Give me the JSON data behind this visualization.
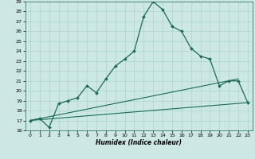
{
  "xlabel": "Humidex (Indice chaleur)",
  "bg_color": "#cde8e4",
  "grid_color": "#a8d4ce",
  "line_color": "#1a6b5a",
  "xlim": [
    -0.5,
    23.5
  ],
  "ylim": [
    16,
    29
  ],
  "xticks": [
    0,
    1,
    2,
    3,
    4,
    5,
    6,
    7,
    8,
    9,
    10,
    11,
    12,
    13,
    14,
    15,
    16,
    17,
    18,
    19,
    20,
    21,
    22,
    23
  ],
  "yticks": [
    16,
    17,
    18,
    19,
    20,
    21,
    22,
    23,
    24,
    25,
    26,
    27,
    28,
    29
  ],
  "humidex_curve": [
    17.0,
    17.2,
    16.3,
    18.7,
    19.0,
    19.3,
    20.5,
    19.8,
    21.2,
    22.5,
    23.2,
    24.0,
    27.5,
    29.0,
    28.2,
    26.5,
    26.0,
    24.3,
    23.5,
    23.2,
    20.5,
    21.0,
    21.0,
    18.8
  ],
  "min_curve_x": [
    0,
    23
  ],
  "min_curve_y": [
    17.0,
    18.8
  ],
  "max_curve_x": [
    0,
    22
  ],
  "max_curve_y": [
    17.0,
    21.2
  ]
}
